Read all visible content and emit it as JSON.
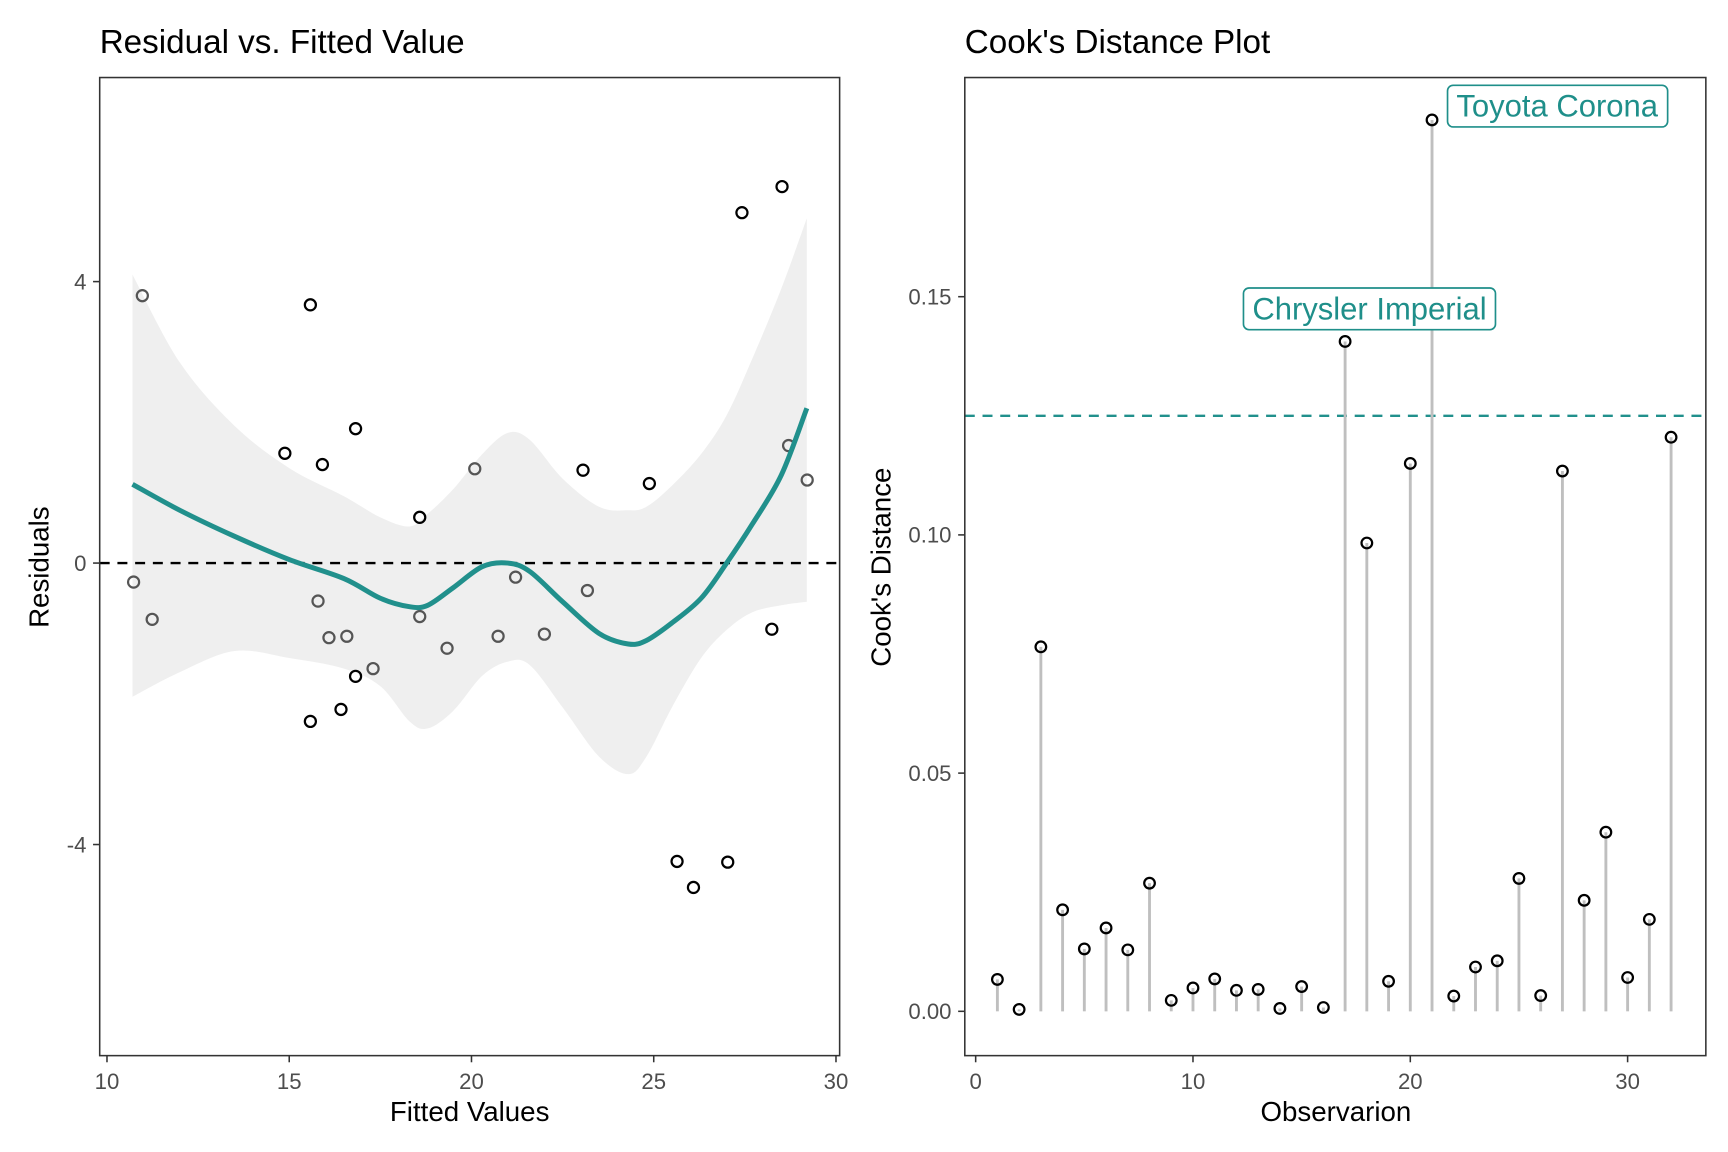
{
  "chart_data": [
    {
      "type": "scatter",
      "title": "Residual vs. Fitted Value",
      "xlabel": "Fitted Values",
      "ylabel": "Residuals",
      "xlim": [
        9.8,
        30.1
      ],
      "ylim": [
        -7.0,
        6.9
      ],
      "x_ticks": [
        10,
        15,
        20,
        25,
        30
      ],
      "x_tick_labels": [
        "10",
        "15",
        "20",
        "25",
        "30"
      ],
      "y_ticks": [
        4,
        0,
        -4
      ],
      "y_tick_labels": [
        "4",
        "0",
        "-4"
      ],
      "grid": false,
      "reference_line": {
        "y": 0,
        "style": "dashed",
        "color": "#000000"
      },
      "points": [
        {
          "x": 10.73,
          "y": -0.27
        },
        {
          "x": 10.97,
          "y": 3.8
        },
        {
          "x": 11.24,
          "y": -0.8
        },
        {
          "x": 14.88,
          "y": 1.56
        },
        {
          "x": 15.58,
          "y": 3.67
        },
        {
          "x": 15.91,
          "y": 1.4
        },
        {
          "x": 15.58,
          "y": -2.25
        },
        {
          "x": 15.79,
          "y": -0.54
        },
        {
          "x": 16.09,
          "y": -1.06
        },
        {
          "x": 16.58,
          "y": -1.04
        },
        {
          "x": 16.82,
          "y": 1.91
        },
        {
          "x": 16.82,
          "y": -1.61
        },
        {
          "x": 16.42,
          "y": -2.08
        },
        {
          "x": 17.3,
          "y": -1.5
        },
        {
          "x": 18.58,
          "y": 0.65
        },
        {
          "x": 18.58,
          "y": -0.76
        },
        {
          "x": 19.33,
          "y": -1.21
        },
        {
          "x": 20.09,
          "y": 1.34
        },
        {
          "x": 20.73,
          "y": -1.04
        },
        {
          "x": 21.21,
          "y": -0.2
        },
        {
          "x": 22.0,
          "y": -1.01
        },
        {
          "x": 23.06,
          "y": 1.32
        },
        {
          "x": 23.18,
          "y": -0.39
        },
        {
          "x": 24.88,
          "y": 1.13
        },
        {
          "x": 25.64,
          "y": -4.24
        },
        {
          "x": 26.09,
          "y": -4.61
        },
        {
          "x": 27.03,
          "y": -4.25
        },
        {
          "x": 27.42,
          "y": 4.98
        },
        {
          "x": 28.24,
          "y": -0.94
        },
        {
          "x": 28.52,
          "y": 5.35
        },
        {
          "x": 28.7,
          "y": 1.67
        },
        {
          "x": 29.21,
          "y": 1.18
        }
      ],
      "smooth": {
        "color": "#21908C",
        "x": [
          10.7,
          12.0,
          13.5,
          15.0,
          16.5,
          17.5,
          18.3,
          18.8,
          19.5,
          20.3,
          21.0,
          21.6,
          22.5,
          23.5,
          24.3,
          24.8,
          25.5,
          26.3,
          27.0,
          27.7,
          28.5,
          29.2
        ],
        "y": [
          1.12,
          0.75,
          0.38,
          0.05,
          -0.22,
          -0.5,
          -0.62,
          -0.6,
          -0.35,
          -0.05,
          0.0,
          -0.12,
          -0.55,
          -1.0,
          -1.15,
          -1.1,
          -0.85,
          -0.5,
          0.0,
          0.55,
          1.25,
          2.2
        ],
        "upper": [
          4.1,
          2.85,
          1.95,
          1.35,
          0.95,
          0.65,
          0.52,
          0.7,
          1.05,
          1.55,
          1.85,
          1.75,
          1.2,
          0.8,
          0.75,
          0.8,
          1.1,
          1.55,
          2.1,
          2.9,
          3.9,
          4.9
        ],
        "lower": [
          -1.9,
          -1.55,
          -1.25,
          -1.35,
          -1.5,
          -1.75,
          -2.25,
          -2.35,
          -2.1,
          -1.6,
          -1.4,
          -1.45,
          -2.05,
          -2.75,
          -3.0,
          -2.75,
          -2.05,
          -1.35,
          -0.95,
          -0.7,
          -0.6,
          -0.55
        ]
      }
    },
    {
      "type": "lollipop",
      "title": "Cook's Distance Plot",
      "xlabel": "Observarion",
      "ylabel": "Cook's Distance",
      "xlim": [
        -0.5,
        33.6
      ],
      "ylim": [
        -0.0093,
        0.196
      ],
      "x_ticks": [
        0,
        10,
        20,
        30
      ],
      "x_tick_labels": [
        "0",
        "10",
        "20",
        "30"
      ],
      "y_ticks": [
        0.0,
        0.05,
        0.1,
        0.15
      ],
      "y_tick_labels": [
        "0.00",
        "0.05",
        "0.10",
        "0.15"
      ],
      "grid": false,
      "threshold": {
        "y": 0.125,
        "style": "dashed",
        "color": "#21908C"
      },
      "observations": [
        1,
        2,
        3,
        4,
        5,
        6,
        7,
        8,
        9,
        10,
        11,
        12,
        13,
        14,
        15,
        16,
        17,
        18,
        19,
        20,
        21,
        22,
        23,
        24,
        25,
        26,
        27,
        28,
        29,
        30,
        31,
        32
      ],
      "values": [
        0.0067,
        0.0004,
        0.0765,
        0.0213,
        0.0131,
        0.0175,
        0.0129,
        0.0269,
        0.0023,
        0.0049,
        0.0068,
        0.0044,
        0.0046,
        0.0006,
        0.0052,
        0.0008,
        0.1406,
        0.0983,
        0.0063,
        0.115,
        0.1871,
        0.0032,
        0.0093,
        0.0106,
        0.0279,
        0.0033,
        0.1134,
        0.0233,
        0.0376,
        0.0071,
        0.0193,
        0.1205
      ],
      "annotations": [
        {
          "observation": 17,
          "text": "Chrysler Imperial"
        },
        {
          "observation": 21,
          "text": "Toyota Corona"
        }
      ]
    }
  ]
}
